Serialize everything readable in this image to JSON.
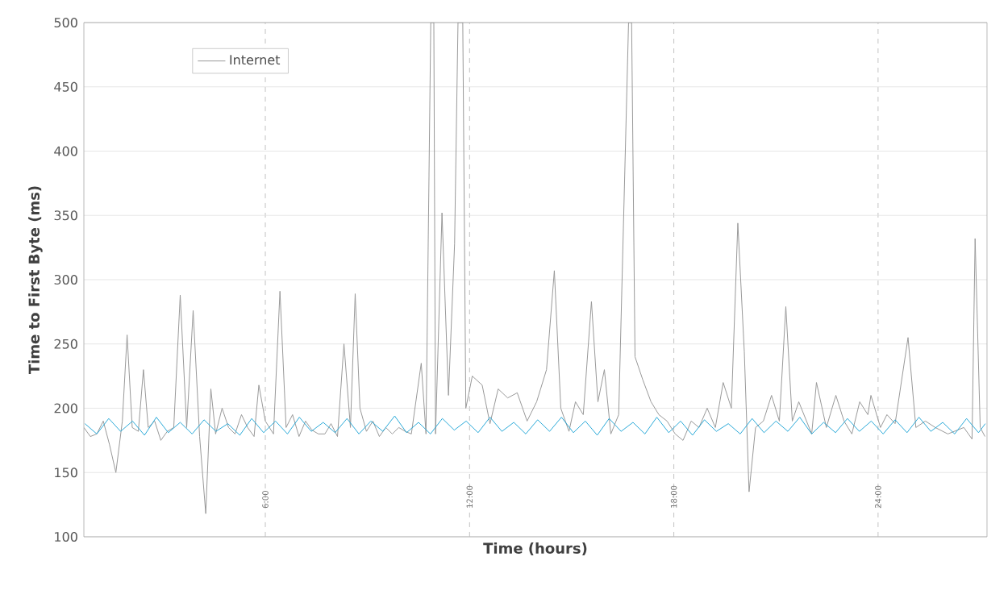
{
  "chart_data": {
    "type": "line",
    "xlabel": "Time (hours)",
    "ylabel": "Time to First Byte (ms)",
    "xlim": [
      0.67,
      27.2
    ],
    "ylim": [
      100,
      500
    ],
    "xticks": [
      {
        "value": 6,
        "label": "6:00"
      },
      {
        "value": 12,
        "label": "12:00"
      },
      {
        "value": 18,
        "label": "18:00"
      },
      {
        "value": 24,
        "label": "24:00"
      }
    ],
    "yticks": [
      100,
      150,
      200,
      250,
      300,
      350,
      400,
      450,
      500
    ],
    "grid": true,
    "legend": "top left",
    "marker": "none",
    "series": [
      {
        "name": "Internet",
        "color": "#999999",
        "x": [
          0.67,
          0.86,
          1.05,
          1.24,
          1.42,
          1.61,
          1.8,
          1.94,
          2.09,
          2.27,
          2.42,
          2.56,
          2.75,
          2.93,
          3.12,
          3.31,
          3.5,
          3.69,
          3.88,
          4.07,
          4.25,
          4.4,
          4.54,
          4.73,
          4.92,
          5.11,
          5.3,
          5.48,
          5.67,
          5.81,
          6.0,
          6.24,
          6.43,
          6.61,
          6.8,
          6.99,
          7.18,
          7.37,
          7.56,
          7.75,
          7.93,
          8.12,
          8.31,
          8.5,
          8.64,
          8.78,
          8.97,
          9.16,
          9.35,
          9.54,
          9.73,
          9.92,
          10.11,
          10.29,
          10.58,
          10.72,
          10.86,
          10.95,
          11.0,
          11.19,
          11.38,
          11.56,
          11.66,
          11.8,
          11.89,
          12.08,
          12.37,
          12.6,
          12.84,
          13.12,
          13.4,
          13.69,
          13.97,
          14.26,
          14.49,
          14.68,
          14.92,
          15.11,
          15.34,
          15.58,
          15.77,
          15.96,
          16.15,
          16.38,
          16.67,
          16.76,
          16.86,
          17.09,
          17.33,
          17.56,
          17.8,
          18.04,
          18.27,
          18.51,
          18.74,
          18.98,
          19.22,
          19.45,
          19.69,
          19.88,
          20.07,
          20.21,
          20.4,
          20.63,
          20.87,
          21.1,
          21.29,
          21.48,
          21.67,
          22.05,
          22.19,
          22.48,
          22.76,
          23.0,
          23.23,
          23.46,
          23.7,
          23.79,
          24.07,
          24.26,
          24.5,
          24.88,
          25.11,
          25.39,
          25.68,
          26.05,
          26.52,
          26.76,
          26.85,
          27.0,
          27.14
        ],
        "values": [
          185,
          178,
          180,
          190,
          172,
          150,
          190,
          257,
          185,
          182,
          230,
          185,
          190,
          175,
          182,
          185,
          288,
          185,
          276,
          178,
          118,
          215,
          180,
          200,
          185,
          180,
          195,
          185,
          178,
          218,
          190,
          180,
          291,
          185,
          195,
          178,
          190,
          183,
          180,
          180,
          188,
          178,
          250,
          185,
          289,
          200,
          182,
          190,
          178,
          185,
          180,
          185,
          182,
          180,
          235,
          180,
          500,
          500,
          180,
          352,
          210,
          328,
          500,
          500,
          200,
          225,
          218,
          188,
          215,
          208,
          212,
          190,
          205,
          230,
          307,
          200,
          182,
          205,
          195,
          283,
          205,
          230,
          180,
          195,
          500,
          500,
          240,
          222,
          205,
          195,
          190,
          180,
          175,
          190,
          185,
          200,
          185,
          220,
          200,
          344,
          244,
          135,
          185,
          190,
          210,
          190,
          279,
          190,
          205,
          180,
          220,
          185,
          210,
          190,
          180,
          205,
          195,
          210,
          185,
          195,
          188,
          255,
          185,
          190,
          185,
          180,
          185,
          176,
          332,
          185,
          178
        ]
      },
      {
        "color": "#29a9d8",
        "x": [
          0.7,
          1.05,
          1.4,
          1.75,
          2.1,
          2.45,
          2.8,
          3.15,
          3.5,
          3.85,
          4.2,
          4.55,
          4.9,
          5.25,
          5.6,
          5.95,
          6.3,
          6.65,
          7.0,
          7.35,
          7.7,
          8.05,
          8.4,
          8.75,
          9.1,
          9.45,
          9.8,
          10.15,
          10.5,
          10.85,
          11.2,
          11.55,
          11.9,
          12.25,
          12.6,
          12.95,
          13.3,
          13.65,
          14.0,
          14.35,
          14.7,
          15.05,
          15.4,
          15.75,
          16.1,
          16.45,
          16.8,
          17.15,
          17.5,
          17.85,
          18.2,
          18.55,
          18.9,
          19.25,
          19.6,
          19.95,
          20.3,
          20.65,
          21.0,
          21.35,
          21.7,
          22.05,
          22.4,
          22.75,
          23.1,
          23.45,
          23.8,
          24.15,
          24.5,
          24.85,
          25.2,
          25.55,
          25.9,
          26.25,
          26.6,
          26.95,
          27.15
        ],
        "values": [
          188,
          180,
          192,
          182,
          190,
          179,
          193,
          181,
          189,
          180,
          191,
          182,
          188,
          179,
          192,
          181,
          190,
          180,
          193,
          182,
          189,
          181,
          192,
          180,
          190,
          182,
          194,
          181,
          189,
          180,
          192,
          183,
          190,
          181,
          193,
          182,
          189,
          180,
          191,
          182,
          193,
          181,
          190,
          179,
          192,
          182,
          189,
          180,
          193,
          181,
          190,
          179,
          191,
          182,
          188,
          180,
          192,
          181,
          190,
          182,
          193,
          180,
          189,
          181,
          192,
          182,
          190,
          180,
          191,
          181,
          193,
          182,
          189,
          180,
          192,
          181,
          188
        ]
      }
    ]
  }
}
